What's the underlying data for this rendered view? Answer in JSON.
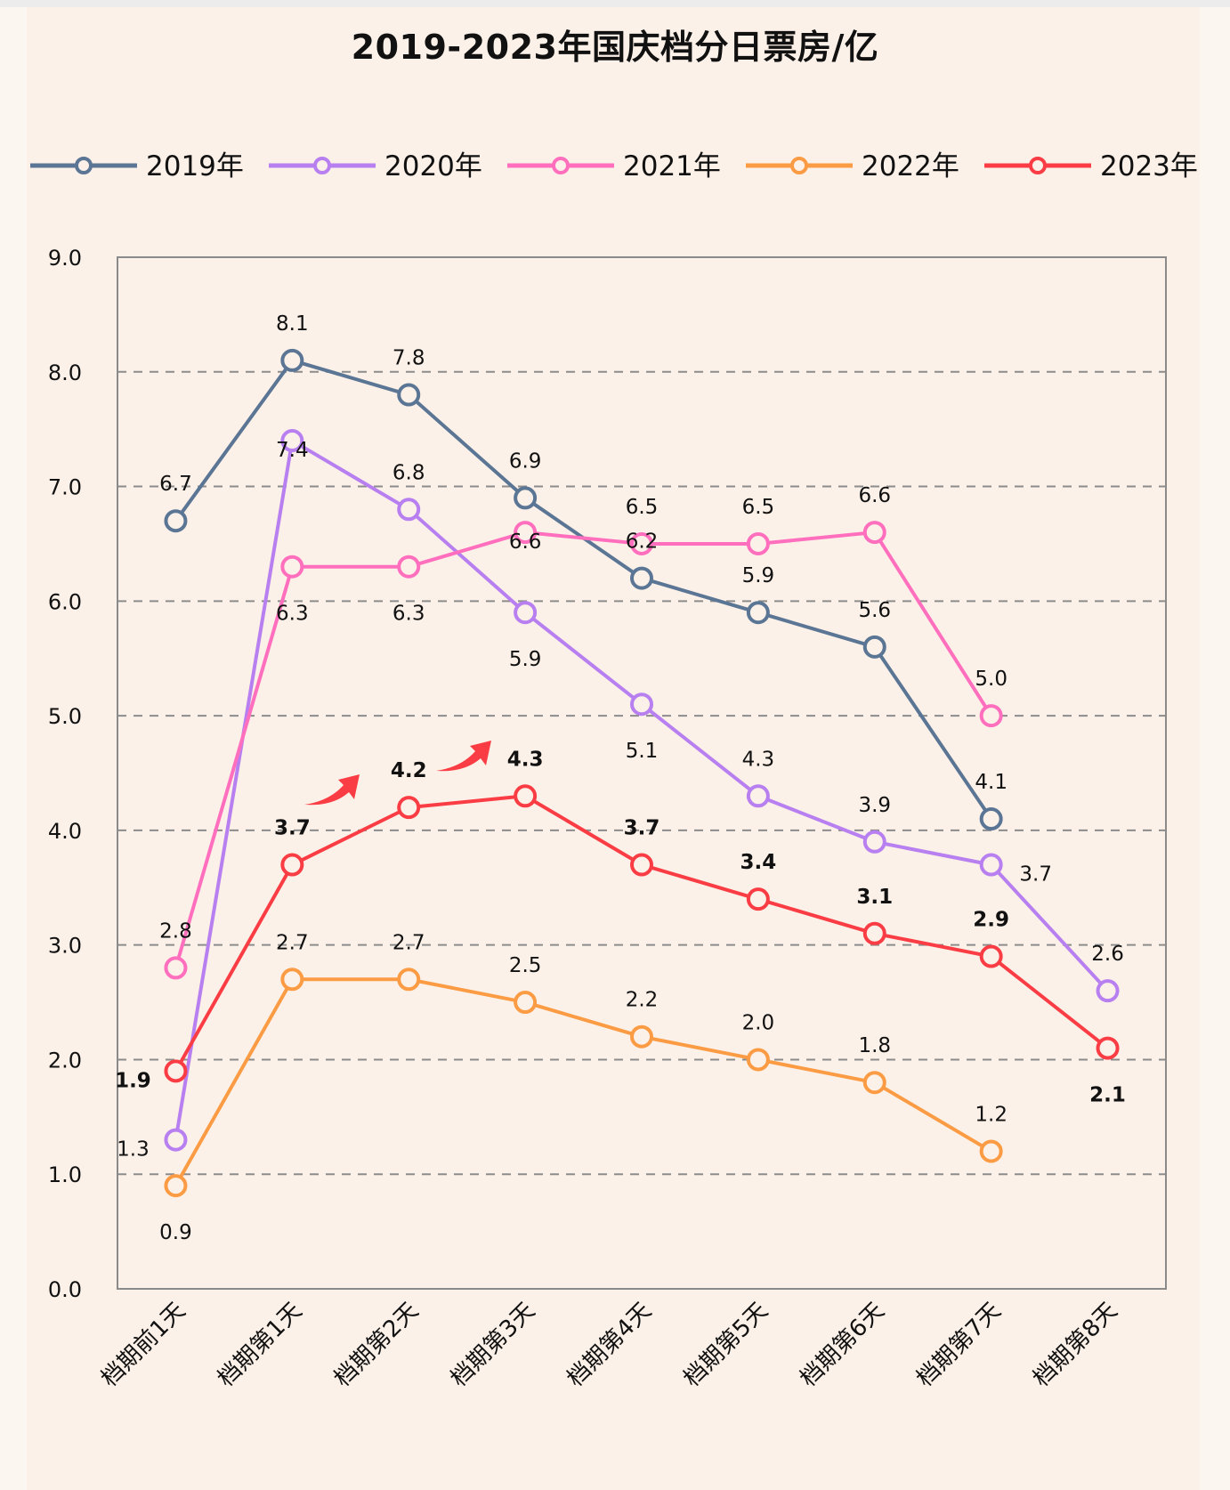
{
  "chart_data": {
    "type": "line",
    "title": "2019-2023年国庆档分日票房/亿",
    "xlabel": "",
    "ylabel": "",
    "ylim": [
      0,
      9
    ],
    "yticks": [
      "0.0",
      "1.0",
      "2.0",
      "3.0",
      "4.0",
      "5.0",
      "6.0",
      "7.0",
      "8.0",
      "9.0"
    ],
    "grid": "horizontal-dashed",
    "legend_position": "top",
    "categories": [
      "档期前1天",
      "档期第1天",
      "档期第2天",
      "档期第3天",
      "档期第4天",
      "档期第5天",
      "档期第6天",
      "档期第7天",
      "档期第8天"
    ],
    "series": [
      {
        "name": "2019年",
        "color": "#5b7595",
        "values": [
          6.7,
          8.1,
          7.8,
          6.9,
          6.2,
          5.9,
          5.6,
          4.1,
          null
        ],
        "labels_bold": false
      },
      {
        "name": "2020年",
        "color": "#b77ff0",
        "values": [
          1.3,
          7.4,
          6.8,
          5.9,
          5.1,
          4.3,
          3.9,
          3.7,
          2.6
        ],
        "labels_bold": false
      },
      {
        "name": "2021年",
        "color": "#ff6fbd",
        "values": [
          2.8,
          6.3,
          6.3,
          6.6,
          6.5,
          6.5,
          6.6,
          5.0,
          null
        ],
        "labels_bold": false
      },
      {
        "name": "2022年",
        "color": "#fb9c45",
        "values": [
          0.9,
          2.7,
          2.7,
          2.5,
          2.2,
          2.0,
          1.8,
          1.2,
          null
        ],
        "labels_bold": false
      },
      {
        "name": "2023年",
        "color": "#fa3d44",
        "values": [
          1.9,
          3.7,
          4.2,
          4.3,
          3.7,
          3.4,
          3.1,
          2.9,
          2.1
        ],
        "labels_bold": true
      }
    ],
    "annotations": [
      {
        "type": "arrow",
        "color": "#fa3d44",
        "between": [
          "档期第1天",
          "档期第2天"
        ],
        "series": "2023年"
      },
      {
        "type": "arrow",
        "color": "#fa3d44",
        "between": [
          "档期第2天",
          "档期第3天"
        ],
        "series": "2023年"
      }
    ]
  }
}
